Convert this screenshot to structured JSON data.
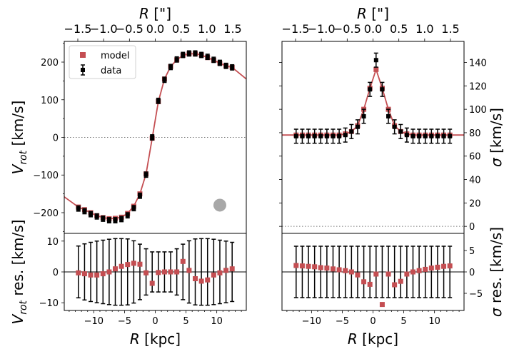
{
  "chart_data": [
    {
      "panel": "vrot-main",
      "type": "scatter",
      "ylabel": "V_rot [km/s]",
      "top_xlabel": "R [\"]",
      "top_ticks": [
        "−1.5",
        "−1.0",
        "−0.5",
        "0.0",
        "0.5",
        "1.0",
        "1.5"
      ],
      "ylim": [
        -255,
        255
      ],
      "yticks": [
        -200,
        -100,
        0,
        100,
        200
      ],
      "legend": {
        "position": "upper-left",
        "entries": [
          "model",
          "data"
        ]
      },
      "beam_marker": {
        "x": 10.5,
        "y": -180
      },
      "x": [
        -12.5,
        -11.5,
        -10.5,
        -9.5,
        -8.5,
        -7.5,
        -6.5,
        -5.5,
        -4.5,
        -3.5,
        -2.5,
        -1.5,
        -0.5,
        0.5,
        1.5,
        2.5,
        3.5,
        4.5,
        5.5,
        6.5,
        7.5,
        8.5,
        9.5,
        10.5,
        11.5,
        12.5
      ],
      "model": [
        -185,
        -192,
        -200,
        -208,
        -213,
        -216,
        -215,
        -212,
        -202,
        -183,
        -150,
        -97,
        -2,
        95,
        155,
        188,
        206,
        218,
        222,
        222,
        219,
        212,
        205,
        197,
        190,
        186
      ],
      "data": [
        -189,
        -196,
        -204,
        -210,
        -216,
        -220,
        -220,
        -217,
        -207,
        -188,
        -155,
        -99,
        0,
        97,
        153,
        187,
        207,
        219,
        223,
        223,
        219,
        214,
        206,
        198,
        190,
        186
      ],
      "err": [
        7,
        7,
        7,
        7,
        7,
        7,
        7,
        7,
        7,
        7,
        7,
        7,
        7,
        7,
        7,
        7,
        7,
        7,
        7,
        7,
        7,
        7,
        7,
        7,
        7,
        7
      ]
    },
    {
      "panel": "sigma-main",
      "type": "scatter",
      "ylabel": "σ [km/s]",
      "top_xlabel": "R [\"]",
      "top_ticks": [
        "−1.5",
        "−1.0",
        "−0.5",
        "0.0",
        "0.5",
        "1.0",
        "1.5"
      ],
      "ylim": [
        -6,
        158
      ],
      "yticks": [
        0,
        20,
        40,
        60,
        80,
        100,
        120,
        140
      ],
      "x": [
        -12.5,
        -11.5,
        -10.5,
        -9.5,
        -8.5,
        -7.5,
        -6.5,
        -5.5,
        -4.5,
        -3.5,
        -2.5,
        -1.5,
        -0.5,
        0.5,
        1.5,
        2.5,
        3.5,
        4.5,
        5.5,
        6.5,
        7.5,
        8.5,
        9.5,
        10.5,
        11.5,
        12.5
      ],
      "model": [
        78,
        78,
        78,
        78,
        78,
        78,
        78,
        78,
        79,
        81,
        86,
        100,
        118,
        134,
        118,
        100,
        86,
        81,
        79,
        78,
        78,
        78,
        78,
        78,
        78,
        78
      ],
      "data": [
        77,
        77,
        77,
        77,
        77,
        77,
        77,
        77,
        78,
        81,
        85,
        94,
        117,
        142,
        117,
        94,
        85,
        81,
        78,
        77,
        77,
        77,
        77,
        77,
        77,
        77
      ],
      "err": [
        6,
        6,
        6,
        6,
        6,
        6,
        6,
        6,
        6,
        6,
        6,
        6,
        6,
        6,
        6,
        6,
        6,
        6,
        6,
        6,
        6,
        6,
        6,
        6,
        6,
        6
      ]
    },
    {
      "panel": "vrot-residual",
      "type": "scatter",
      "xlabel": "R [kpc]",
      "ylabel": "V_rot res. [km/s]",
      "xlim": [
        -14.8,
        14.8
      ],
      "xticks": [
        -10,
        -5,
        0,
        5,
        10
      ],
      "ylim": [
        -12.5,
        12.5
      ],
      "yticks": [
        -10,
        0,
        10
      ],
      "x": [
        -12.5,
        -11.5,
        -10.5,
        -9.5,
        -8.5,
        -7.5,
        -6.5,
        -5.5,
        -4.5,
        -3.5,
        -2.5,
        -1.5,
        -0.5,
        0.5,
        1.5,
        2.5,
        3.5,
        4.5,
        5.5,
        6.5,
        7.5,
        8.5,
        9.5,
        10.5,
        11.5,
        12.5
      ],
      "residual": [
        -0.3,
        -0.6,
        -1.0,
        -1.0,
        -0.6,
        0.0,
        1.0,
        1.8,
        2.4,
        2.8,
        2.5,
        -0.3,
        -3.7,
        -0.2,
        0.0,
        0.0,
        0.0,
        3.4,
        0.5,
        -2.2,
        -3.0,
        -2.6,
        -1.0,
        -0.3,
        0.5,
        1.0
      ],
      "err": [
        8.4,
        9.1,
        9.6,
        10.0,
        10.3,
        10.6,
        10.8,
        10.8,
        10.7,
        10.1,
        9.0,
        7.5,
        6.5,
        6.5,
        6.5,
        6.5,
        7.5,
        9.0,
        10.1,
        10.7,
        10.8,
        10.8,
        10.6,
        10.3,
        10.0,
        9.6
      ]
    },
    {
      "panel": "sigma-residual",
      "type": "scatter",
      "xlabel": "R [kpc]",
      "ylabel": "σ res. [km/s]",
      "xlim": [
        -14.8,
        14.8
      ],
      "xticks": [
        -10,
        -5,
        0,
        5,
        10
      ],
      "ylim": [
        -9,
        9
      ],
      "yticks": [
        -5,
        0,
        5
      ],
      "x": [
        -12.5,
        -11.5,
        -10.5,
        -9.5,
        -8.5,
        -7.5,
        -6.5,
        -5.5,
        -4.5,
        -3.5,
        -2.5,
        -1.5,
        -0.5,
        0.5,
        1.5,
        2.5,
        3.5,
        4.5,
        5.5,
        6.5,
        7.5,
        8.5,
        9.5,
        10.5,
        11.5,
        12.5
      ],
      "residual": [
        1.5,
        1.4,
        1.3,
        1.2,
        1.0,
        0.9,
        0.7,
        0.5,
        0.3,
        0.0,
        -0.7,
        -2.3,
        -2.9,
        -0.5,
        -7.6,
        -0.5,
        -3.0,
        -2.2,
        -0.5,
        0.0,
        0.3,
        0.6,
        0.9,
        1.1,
        1.3,
        1.4
      ],
      "err": [
        6,
        6,
        6,
        6,
        6,
        6,
        6,
        6,
        6,
        6,
        6,
        6,
        6,
        6,
        6,
        6,
        6,
        6,
        6,
        6,
        6,
        6,
        6,
        6,
        6,
        6
      ]
    }
  ],
  "colors": {
    "model": "#c44e52",
    "data": "#000000",
    "beam": "#a8a8a8"
  }
}
